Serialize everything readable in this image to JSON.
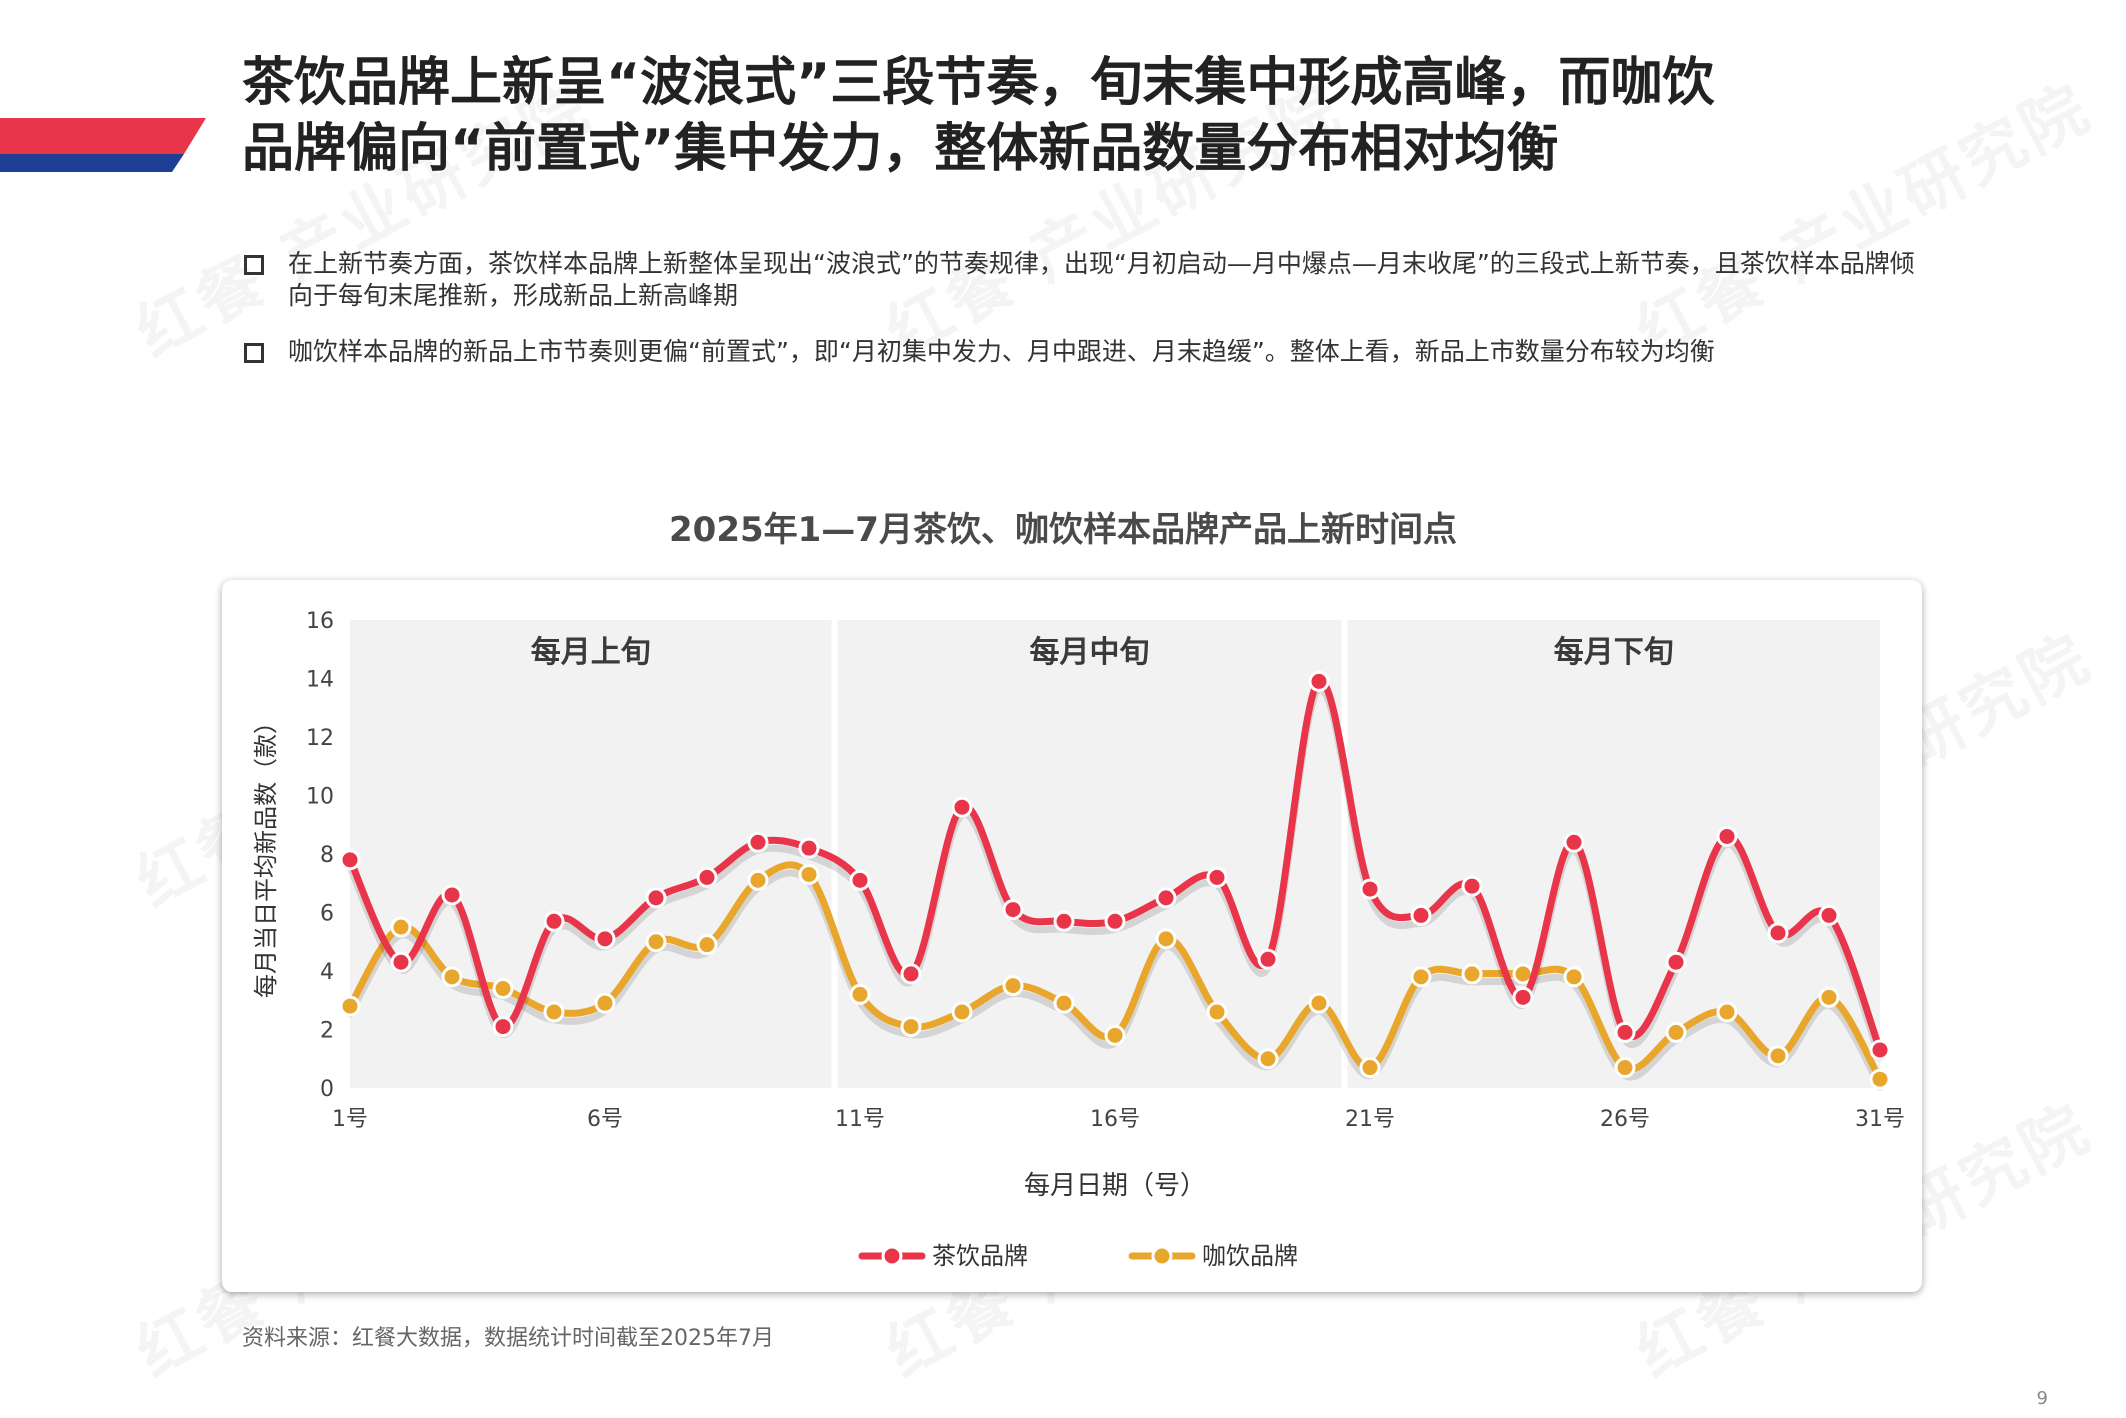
{
  "page": {
    "title_line1": "茶饮品牌上新呈“波浪式”三段节奏，旬末集中形成高峰，而咖饮",
    "title_line2": "品牌偏向“前置式”集中发力，整体新品数量分布相对均衡",
    "bullets": [
      "在上新节奏方面，茶饮样本品牌上新整体呈现出“波浪式”的节奏规律，出现“月初启动—月中爆点—月末收尾”的三段式上新节奏，且茶饮样本品牌倾向于每旬末尾推新，形成新品上新高峰期",
      "咖饮样本品牌的新品上市节奏则更偏“前置式”，即“月初集中发力、月中跟进、月末趋缓”。整体上看，新品上市数量分布较为均衡"
    ],
    "source": "资料来源：红餐大数据，数据统计时间截至2025年7月",
    "page_number": "9",
    "watermark": "红餐 产业研究院",
    "colors": {
      "red": "#e8354a",
      "blue": "#1f3f96",
      "tea": "#e8354a",
      "coffee": "#e8a62c"
    }
  },
  "chart_data": {
    "type": "line",
    "title": "2025年1—7月茶饮、咖饮样本品牌产品上新时间点",
    "xlabel": "每月日期（号）",
    "ylabel": "每月当日平均新品数（款）",
    "ylim": [
      0,
      16
    ],
    "yticks": [
      "0",
      "2",
      "4",
      "6",
      "8",
      "10",
      "12",
      "14",
      "16"
    ],
    "x": [
      1,
      2,
      3,
      4,
      5,
      6,
      7,
      8,
      9,
      10,
      11,
      12,
      13,
      14,
      15,
      16,
      17,
      18,
      19,
      20,
      21,
      22,
      23,
      24,
      25,
      26,
      27,
      28,
      29,
      30,
      31
    ],
    "xtick_labels": [
      {
        "x": 1,
        "label": "1号"
      },
      {
        "x": 6,
        "label": "6号"
      },
      {
        "x": 11,
        "label": "11号"
      },
      {
        "x": 16,
        "label": "16号"
      },
      {
        "x": 21,
        "label": "21号"
      },
      {
        "x": 26,
        "label": "26号"
      },
      {
        "x": 31,
        "label": "31号"
      }
    ],
    "bands": [
      {
        "label": "每月上旬",
        "from": 1,
        "to": 10.5
      },
      {
        "label": "每月中旬",
        "from": 10.5,
        "to": 20.5
      },
      {
        "label": "每月下旬",
        "from": 20.5,
        "to": 31
      }
    ],
    "series": [
      {
        "name": "茶饮品牌",
        "color": "#e8354a",
        "values": [
          7.8,
          4.3,
          6.6,
          2.1,
          5.7,
          5.1,
          6.5,
          7.2,
          8.4,
          8.2,
          7.1,
          3.9,
          9.6,
          6.1,
          5.7,
          5.7,
          6.5,
          7.2,
          4.4,
          13.9,
          6.8,
          5.9,
          6.9,
          3.1,
          8.4,
          1.9,
          4.3,
          8.6,
          5.3,
          5.9,
          1.3
        ]
      },
      {
        "name": "咖饮品牌",
        "color": "#e8a62c",
        "values": [
          2.8,
          5.5,
          3.8,
          3.4,
          2.6,
          2.9,
          5.0,
          4.9,
          7.1,
          7.3,
          3.2,
          2.1,
          2.6,
          3.5,
          2.9,
          1.8,
          5.1,
          2.6,
          1.0,
          2.9,
          0.7,
          3.8,
          3.9,
          3.9,
          3.8,
          0.7,
          1.9,
          2.6,
          1.1,
          3.1,
          0.3
        ]
      }
    ],
    "grid": false,
    "legend": "bottom-center"
  }
}
